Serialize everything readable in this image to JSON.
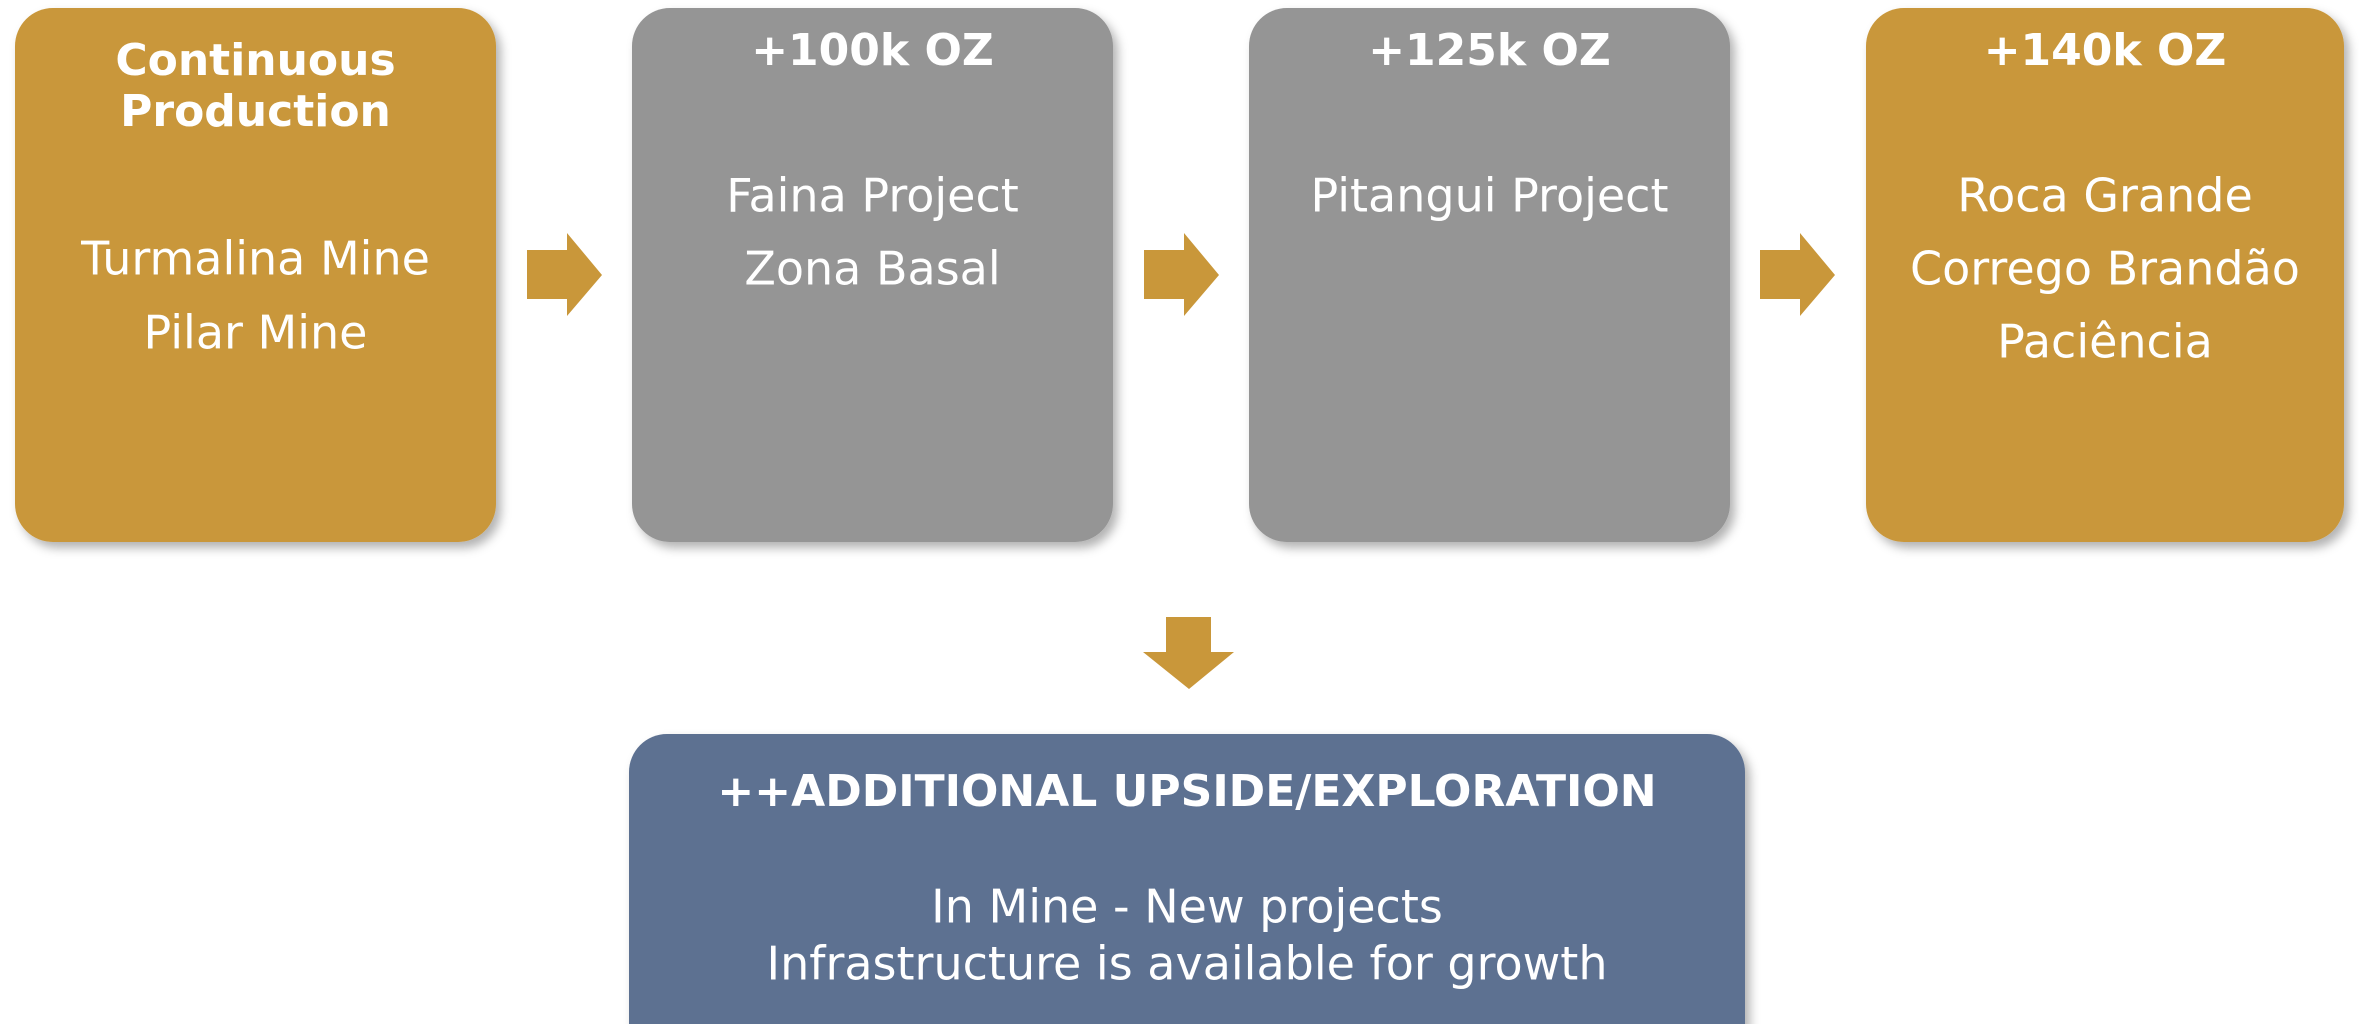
{
  "boxes": [
    {
      "title_lines": [
        "Continuous",
        "Production"
      ],
      "lines": [
        "Turmalina Mine",
        "Pilar Mine"
      ]
    },
    {
      "title_lines": [
        "+100k OZ"
      ],
      "lines": [
        "Faina Project",
        "Zona Basal"
      ]
    },
    {
      "title_lines": [
        "+125k OZ"
      ],
      "lines": [
        "Pitangui Project"
      ]
    },
    {
      "title_lines": [
        "+140k OZ"
      ],
      "lines": [
        "Roca Grande",
        "Corrego Brandão",
        "Paciência"
      ]
    }
  ],
  "upside": {
    "title": "++ADDITIONAL UPSIDE/EXPLORATION",
    "lines": [
      "In Mine - New projects",
      "Infrastructure is available for growth"
    ]
  }
}
